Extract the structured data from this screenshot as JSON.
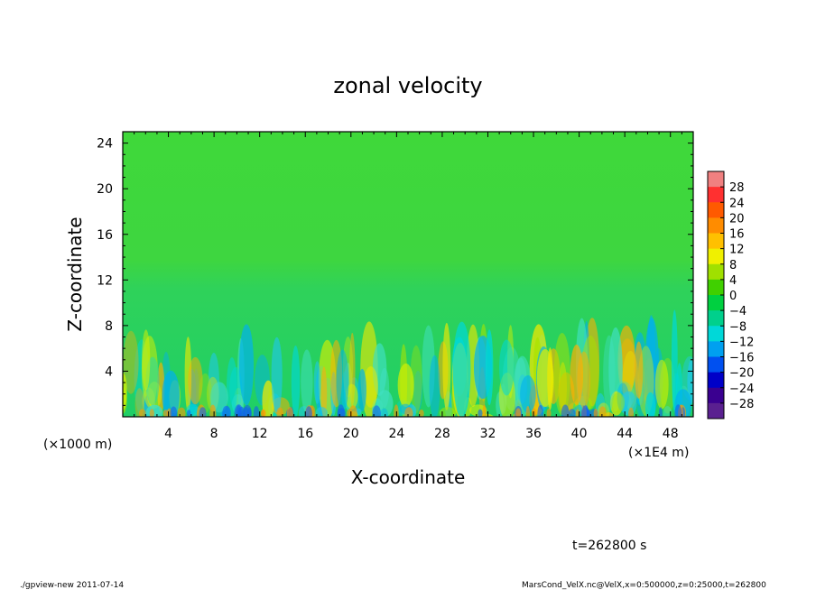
{
  "chart_data": {
    "type": "heatmap",
    "title": "zonal velocity",
    "xlabel": "X-coordinate",
    "ylabel": "Z-coordinate",
    "x_unit": "(×1E4 m)",
    "y_unit": "(×1000 m)",
    "x_ticks": [
      4,
      8,
      12,
      16,
      20,
      24,
      28,
      32,
      36,
      40,
      44,
      48
    ],
    "y_ticks": [
      4,
      8,
      12,
      16,
      20,
      24
    ],
    "xlim": [
      0,
      50
    ],
    "ylim": [
      0,
      25
    ],
    "colorbar": {
      "levels": [
        -28,
        -24,
        -20,
        -16,
        -12,
        -8,
        -4,
        0,
        4,
        8,
        12,
        16,
        20,
        24,
        28
      ],
      "labels": [
        "28",
        "24",
        "20",
        "16",
        "12",
        "8",
        "4",
        "0",
        "−4",
        "−8",
        "−12",
        "−16",
        "−20",
        "−24",
        "−28"
      ],
      "colors_top_to_bottom": [
        "#f08080",
        "#ff3030",
        "#ff5a00",
        "#ff8c00",
        "#ffc000",
        "#f0f000",
        "#a0e000",
        "#40d000",
        "#00d040",
        "#00d08c",
        "#00d8d8",
        "#00a0f0",
        "#0050f0",
        "#0000c8",
        "#3a0090",
        "#5a2090"
      ]
    },
    "field_description": "Near-zero (green) above ~12e3 m; alternating positive (yellow/orange) and negative (cyan/blue) vertical streaks below ~10e3 m"
  },
  "annotations": {
    "time": "t=262800 s",
    "footer_left": "./gpview-new  2011-07-14",
    "footer_right": "MarsCond_VelX.nc@VelX,x=0:500000,z=0:25000,t=262800"
  }
}
